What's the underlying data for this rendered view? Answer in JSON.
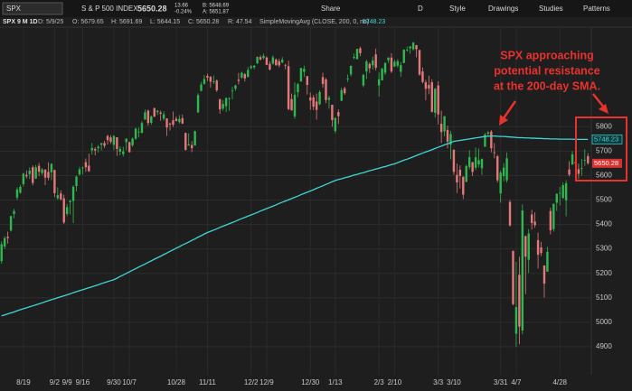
{
  "header": {
    "symbol": "SPX",
    "description": "S & P 500 INDEX",
    "last": "5650.28",
    "change": "13.66",
    "change_pct": "-0.24%",
    "bid": "B: 5648.69",
    "ask": "A: 5651.87",
    "share": "Share",
    "period": "D",
    "style": "Style",
    "drawings": "Drawings",
    "studies": "Studies",
    "patterns": "Patterns",
    "chart_label": "SPX 9 M 1D",
    "date": "D: 5/9/25",
    "open": "O: 5679.65",
    "high": "H: 5691.69",
    "low": "L: 5644.15",
    "close": "C: 5650.28",
    "range": "R: 47.54"
  },
  "chart_data": {
    "type": "candlestick",
    "annotation": [
      "SPX approaching",
      "potential resistance",
      "at the 200-day SMA."
    ],
    "up_color": "#2fb84f",
    "down_color": "#e4787a",
    "ylim": [
      4785,
      6204
    ],
    "yticks": [
      4900,
      5000,
      5100,
      5200,
      5300,
      5400,
      5500,
      5600,
      5700,
      5800
    ],
    "grid": true,
    "categories": [
      null,
      null,
      null,
      null,
      null,
      null,
      null,
      "8/19",
      null,
      null,
      null,
      null,
      null,
      null,
      null,
      null,
      null,
      "9/2",
      null,
      null,
      null,
      "9/9",
      null,
      null,
      null,
      null,
      "9/16",
      null,
      null,
      null,
      null,
      null,
      null,
      null,
      null,
      null,
      "9/30",
      null,
      null,
      null,
      null,
      "10/7",
      null,
      null,
      null,
      null,
      null,
      null,
      null,
      null,
      null,
      null,
      null,
      null,
      null,
      null,
      "10/28",
      null,
      null,
      null,
      null,
      null,
      null,
      null,
      null,
      null,
      "11/11",
      null,
      null,
      null,
      null,
      null,
      null,
      null,
      null,
      null,
      null,
      null,
      null,
      null,
      "12/2",
      null,
      null,
      null,
      null,
      "12/9",
      null,
      null,
      null,
      null,
      null,
      null,
      null,
      null,
      null,
      null,
      null,
      null,
      null,
      "12/30",
      null,
      null,
      null,
      null,
      null,
      null,
      null,
      "1/13",
      null,
      null,
      null,
      null,
      null,
      null,
      null,
      null,
      null,
      null,
      null,
      null,
      null,
      "2/3",
      null,
      null,
      null,
      null,
      "2/10",
      null,
      null,
      null,
      null,
      null,
      null,
      null,
      null,
      null,
      null,
      null,
      null,
      null,
      "3/3",
      null,
      null,
      null,
      null,
      "3/10",
      null,
      null,
      null,
      null,
      null,
      null,
      null,
      null,
      null,
      null,
      null,
      null,
      null,
      null,
      "3/31",
      null,
      null,
      null,
      null,
      "4/7",
      null,
      null,
      null,
      null,
      null,
      null,
      null,
      null,
      null,
      null,
      null,
      null,
      null,
      "4/28",
      null,
      null,
      null,
      null,
      null,
      null,
      null,
      null,
      null
    ],
    "ohlc": {
      "open": [
        5250,
        5310,
        5350,
        5375,
        5443,
        5510,
        5530,
        5565,
        5603,
        5606,
        5634,
        5588,
        5640,
        5610,
        5624,
        5615,
        5613,
        5623,
        5507,
        5527,
        5507,
        5443,
        5491,
        5496,
        5557,
        5605,
        5630,
        5655,
        5641,
        5703,
        5709,
        5712,
        5726,
        5733,
        5762,
        5756,
        5726,
        5757,
        5698,
        5688,
        5737,
        5737,
        5724,
        5751,
        5779,
        5775,
        5829,
        5866,
        5816,
        5876,
        5860,
        5858,
        5833,
        5834,
        5813,
        5826,
        5833,
        5819,
        5835,
        5775,
        5723,
        5725,
        5723,
        5859,
        5947,
        5976,
        6008,
        6004,
        5985,
        5989,
        5912,
        5874,
        5884,
        5917,
        5945,
        5955,
        5992,
        6001,
        6015,
        6003,
        6040,
        6043,
        6060,
        6085,
        6081,
        6083,
        6057,
        6058,
        6075,
        6068,
        6063,
        6053,
        6048,
        5913,
        5842,
        5941,
        5985,
        6025,
        6007,
        5920,
        5920,
        5903,
        5892,
        6003,
        5993,
        5910,
        5890,
        5782,
        5860,
        5906,
        5957,
        5994,
        6014,
        6081,
        6077,
        6121,
        5969,
        6026,
        6057,
        6051,
        6096,
        5969,
        5990,
        6021,
        6072,
        6083,
        6046,
        6050,
        6025,
        6061,
        6115,
        6121,
        6117,
        6134,
        6114,
        6026,
        5982,
        5971,
        5982,
        5857,
        5969,
        5812,
        5781,
        5787,
        5726,
        5706,
        5603,
        5624,
        5595,
        5574,
        5635,
        5655,
        5632,
        5646,
        5630,
        5718,
        5771,
        5780,
        5695,
        5679,
        5527,
        5598,
        5581,
        5492,
        5292,
        4953,
        5194,
        4966,
        5353,
        5255,
        5441,
        5412,
        5336,
        5306,
        5232,
        5207,
        5455,
        5381,
        5489,
        5529,
        5508,
        5499,
        5625,
        5645,
        5655,
        5626,
        5630,
        5664,
        5679.65
      ],
      "high": [
        5330,
        5352,
        5371,
        5436,
        5464,
        5552,
        5562,
        5611,
        5621,
        5633,
        5642,
        5644,
        5652,
        5631,
        5627,
        5655,
        5651,
        5624,
        5552,
        5540,
        5522,
        5484,
        5501,
        5560,
        5600,
        5636,
        5637,
        5670,
        5690,
        5733,
        5716,
        5725,
        5735,
        5742,
        5767,
        5765,
        5765,
        5757,
        5720,
        5718,
        5753,
        5739,
        5756,
        5796,
        5796,
        5822,
        5871,
        5870,
        5846,
        5878,
        5869,
        5866,
        5863,
        5834,
        5817,
        5862,
        5842,
        5848,
        5850,
        5775,
        5773,
        5741,
        5784,
        5937,
        5983,
        6012,
        6017,
        6008,
        6009,
        5993,
        5915,
        5909,
        5920,
        5920,
        5963,
        5972,
        6020,
        6025,
        6020,
        6044,
        6053,
        6052,
        6087,
        6092,
        6099,
        6088,
        6068,
        6092,
        6080,
        6078,
        6085,
        6057,
        6070,
        5936,
        5982,
        5979,
        6041,
        6050,
        6007,
        5940,
        5930,
        5936,
        5949,
        6021,
        6000,
        5927,
        5890,
        5838,
        5871,
        5960,
        5964,
        6014,
        6051,
        6100,
        6119,
        6128,
        6017,
        6074,
        6063,
        6087,
        6120,
        6022,
        6042,
        6063,
        6084,
        6101,
        6074,
        6076,
        6065,
        6117,
        6128,
        6129,
        6147,
        6134,
        6114,
        6043,
        5992,
        6009,
        5994,
        5959,
        5986,
        5866,
        5844,
        5805,
        5783,
        5706,
        5649,
        5642,
        5597,
        5645,
        5704,
        5656,
        5715,
        5711,
        5670,
        5775,
        5782,
        5786,
        5733,
        5685,
        5621,
        5651,
        5695,
        5500,
        5292,
        5247,
        5268,
        5482,
        5353,
        5381,
        5460,
        5450,
        5367,
        5329,
        5233,
        5309,
        5469,
        5485,
        5528,
        5554,
        5572,
        5581,
        5659,
        5700,
        5683,
        5649,
        5668,
        5708,
        5691.69
      ],
      "low": [
        5240,
        5300,
        5322,
        5371,
        5425,
        5500,
        5525,
        5555,
        5588,
        5586,
        5560,
        5586,
        5598,
        5601,
        5561,
        5581,
        5582,
        5512,
        5501,
        5498,
        5402,
        5434,
        5441,
        5406,
        5535,
        5600,
        5604,
        5615,
        5615,
        5686,
        5683,
        5695,
        5703,
        5713,
        5727,
        5730,
        5704,
        5681,
        5683,
        5678,
        5704,
        5694,
        5718,
        5746,
        5756,
        5772,
        5829,
        5804,
        5808,
        5840,
        5848,
        5824,
        5825,
        5762,
        5784,
        5799,
        5823,
        5813,
        5811,
        5703,
        5723,
        5696,
        5723,
        5856,
        5944,
        5971,
        5987,
        5960,
        5975,
        5942,
        5853,
        5866,
        5860,
        5865,
        5912,
        5947,
        5973,
        5996,
        5985,
        6003,
        6035,
        6035,
        6056,
        6071,
        6075,
        6053,
        6030,
        6054,
        6051,
        6043,
        6060,
        6035,
        5867,
        5866,
        5832,
        5921,
        5985,
        6004,
        5932,
        5869,
        5868,
        5829,
        5888,
        5960,
        5896,
        5874,
        5800,
        5773,
        5811,
        5906,
        5930,
        5983,
        6006,
        6076,
        6075,
        6089,
        5962,
        5995,
        6020,
        6034,
        6030,
        5923,
        5990,
        6012,
        6061,
        6020,
        6046,
        6042,
        6004,
        6060,
        6107,
        6099,
        6111,
        6084,
        6009,
        5977,
        5908,
        5933,
        5858,
        5837,
        5810,
        5733,
        5761,
        5711,
        5667,
        5603,
        5529,
        5547,
        5504,
        5574,
        5625,
        5598,
        5622,
        5633,
        5603,
        5718,
        5759,
        5695,
        5671,
        5572,
        5489,
        5576,
        5571,
        5391,
        5069,
        4900,
        4910,
        4950,
        5115,
        5201,
        5379,
        5386,
        5220,
        5271,
        5101,
        5207,
        5359,
        5371,
        5456,
        5478,
        5505,
        5433,
        5597,
        5645,
        5637,
        5586,
        5600,
        5640,
        5644.15
      ],
      "close": [
        5319,
        5344,
        5344,
        5434,
        5455,
        5543,
        5554,
        5608,
        5597,
        5620,
        5570,
        5634,
        5616,
        5625,
        5592,
        5591,
        5648,
        5528,
        5520,
        5503,
        5408,
        5471,
        5496,
        5554,
        5596,
        5626,
        5633,
        5634,
        5618,
        5713,
        5703,
        5718,
        5732,
        5722,
        5745,
        5738,
        5762,
        5709,
        5709,
        5699,
        5751,
        5696,
        5751,
        5792,
        5780,
        5815,
        5859,
        5815,
        5842,
        5841,
        5865,
        5853,
        5851,
        5797,
        5809,
        5808,
        5823,
        5832,
        5813,
        5705,
        5728,
        5712,
        5782,
        5929,
        5973,
        5995,
        6001,
        5984,
        5985,
        5949,
        5871,
        5893,
        5917,
        5917,
        5948,
        5969,
        5987,
        6021,
        5998,
        6032,
        6047,
        6050,
        6086,
        6075,
        6090,
        6053,
        6034,
        6084,
        6051,
        6051,
        6074,
        6050,
        5872,
        5867,
        5931,
        5974,
        6040,
        6037,
        5971,
        5907,
        5882,
        5869,
        5942,
        5975,
        5909,
        5918,
        5827,
        5836,
        5843,
        5950,
        5937,
        5997,
        6049,
        6086,
        6119,
        6101,
        6012,
        6067,
        6039,
        6071,
        6041,
        5994,
        6037,
        6061,
        6083,
        6026,
        6066,
        6068,
        6052,
        6115,
        6115,
        6129,
        6144,
        6117,
        6013,
        5983,
        5955,
        5956,
        5861,
        5955,
        5850,
        5778,
        5843,
        5739,
        5770,
        5615,
        5572,
        5599,
        5522,
        5639,
        5675,
        5615,
        5675,
        5663,
        5668,
        5768,
        5777,
        5712,
        5693,
        5581,
        5612,
        5633,
        5671,
        5396,
        5074,
        5062,
        4982,
        5457,
        5268,
        5363,
        5406,
        5397,
        5276,
        5283,
        5158,
        5288,
        5376,
        5485,
        5525,
        5529,
        5561,
        5569,
        5604,
        5687,
        5650,
        5607,
        5631,
        5664,
        5650.28
      ]
    },
    "overlays": [
      {
        "name": "SimpleMovingAvg (CLOSE, 200, 0, no)",
        "color": "#3fd6d6",
        "values": [
          5026,
          5030,
          5034,
          5038,
          5042,
          5047,
          5051,
          5055,
          5059,
          5063,
          5067,
          5071,
          5075,
          5079,
          5084,
          5088,
          5092,
          5096,
          5100,
          5104,
          5108,
          5112,
          5116,
          5121,
          5125,
          5129,
          5133,
          5137,
          5141,
          5145,
          5149,
          5153,
          5158,
          5162,
          5166,
          5170,
          5174,
          5180,
          5187,
          5193,
          5200,
          5206,
          5213,
          5219,
          5226,
          5232,
          5238,
          5245,
          5251,
          5258,
          5264,
          5270,
          5277,
          5283,
          5290,
          5296,
          5303,
          5309,
          5316,
          5322,
          5328,
          5335,
          5341,
          5348,
          5354,
          5361,
          5367,
          5372,
          5377,
          5382,
          5388,
          5393,
          5398,
          5403,
          5408,
          5413,
          5419,
          5424,
          5429,
          5434,
          5439,
          5444,
          5449,
          5455,
          5460,
          5465,
          5470,
          5475,
          5480,
          5486,
          5491,
          5496,
          5501,
          5506,
          5511,
          5516,
          5522,
          5527,
          5532,
          5537,
          5542,
          5548,
          5553,
          5558,
          5564,
          5569,
          5575,
          5580,
          5584,
          5587,
          5591,
          5594,
          5598,
          5602,
          5605,
          5609,
          5612,
          5616,
          5620,
          5623,
          5627,
          5630,
          5634,
          5637,
          5641,
          5645,
          5648,
          5653,
          5658,
          5663,
          5667,
          5672,
          5677,
          5682,
          5687,
          5692,
          5697,
          5701,
          5706,
          5711,
          5716,
          5721,
          5726,
          5730,
          5735,
          5740,
          5742,
          5744,
          5746,
          5748,
          5750,
          5752,
          5754,
          5756,
          5758,
          5760,
          5761,
          5762,
          5762,
          5761,
          5760,
          5760,
          5759,
          5758,
          5757,
          5756,
          5755,
          5755,
          5754,
          5754,
          5753,
          5753,
          5752,
          5752,
          5751,
          5751,
          5750,
          5750,
          5750,
          5749,
          5749,
          5749,
          5749,
          5749,
          5748,
          5748,
          5748,
          5748,
          5748.23
        ]
      }
    ]
  }
}
